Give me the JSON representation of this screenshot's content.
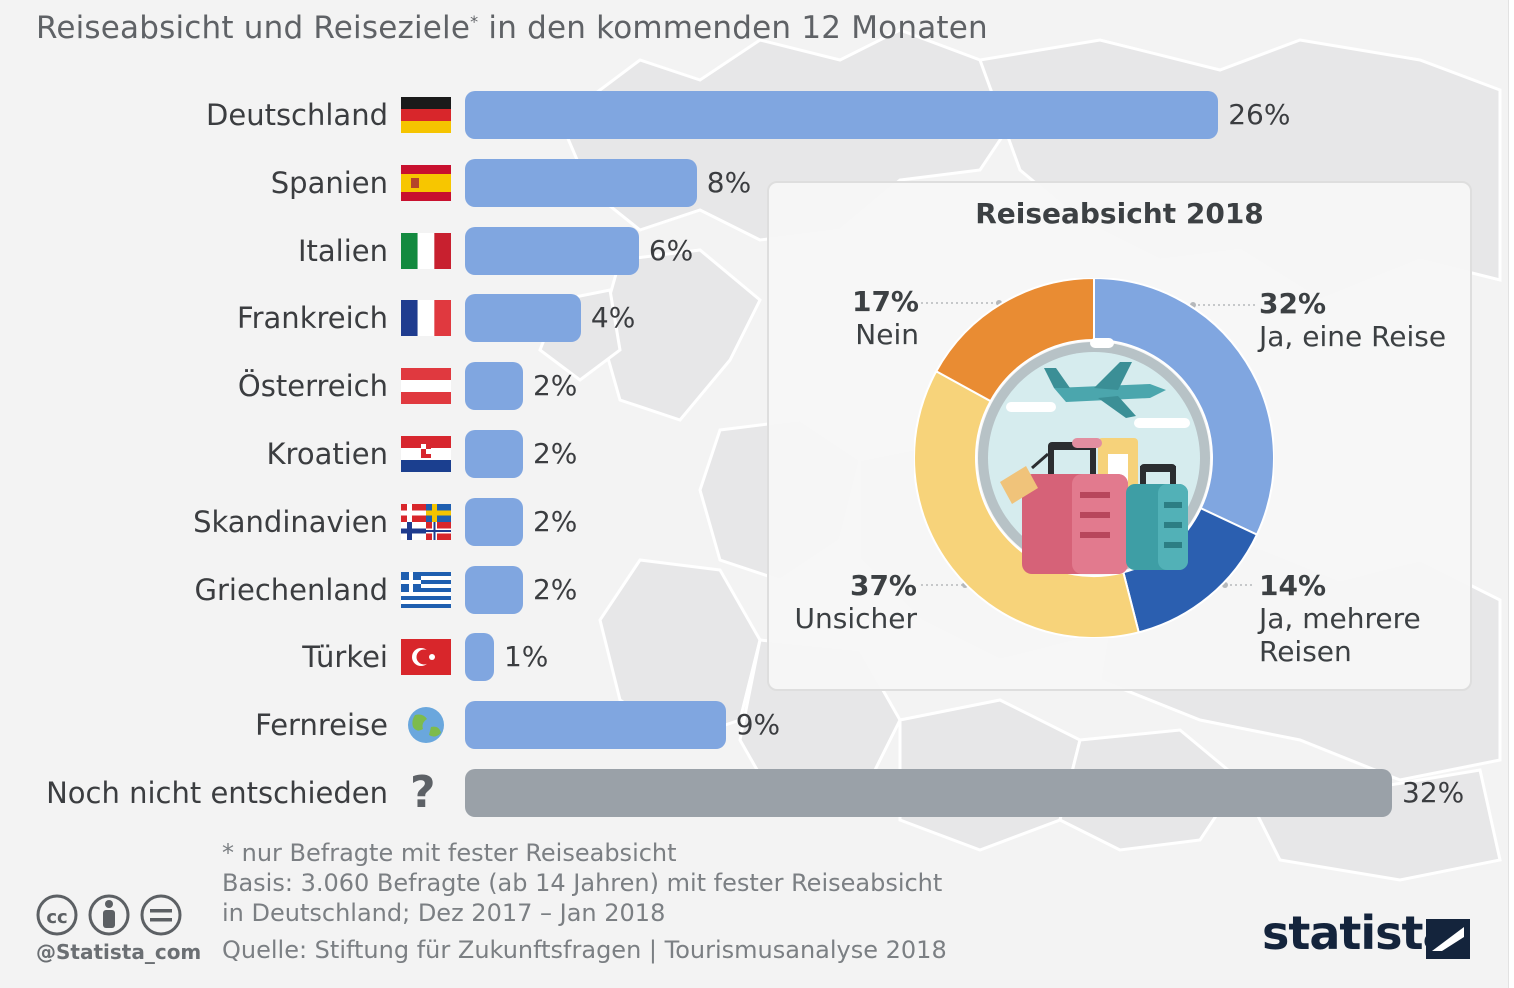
{
  "title": "Reiseabsicht und Reiseziele",
  "title_mark": "*",
  "title_suffix": " in den kommenden 12 Monaten",
  "chart_data": [
    {
      "type": "bar",
      "orientation": "horizontal",
      "categories": [
        "Deutschland",
        "Spanien",
        "Italien",
        "Frankreich",
        "Österreich",
        "Kroatien",
        "Skandinavien",
        "Griechenland",
        "Türkei",
        "Fernreise",
        "Noch nicht entschieden"
      ],
      "values": [
        26,
        8,
        6,
        4,
        2,
        2,
        2,
        2,
        1,
        9,
        32
      ],
      "value_labels": [
        "26%",
        "8%",
        "6%",
        "4%",
        "2%",
        "2%",
        "2%",
        "2%",
        "1%",
        "9%",
        "32%"
      ],
      "icons": [
        "flag-germany",
        "flag-spain",
        "flag-italy",
        "flag-france",
        "flag-austria",
        "flag-croatia",
        "flags-scandinavia",
        "flag-greece",
        "flag-turkey",
        "globe",
        "question-mark"
      ],
      "colors": [
        "#80a6e0",
        "#80a6e0",
        "#80a6e0",
        "#80a6e0",
        "#80a6e0",
        "#80a6e0",
        "#80a6e0",
        "#80a6e0",
        "#80a6e0",
        "#80a6e0",
        "#9aa1a8"
      ],
      "unit": "%",
      "xlim": [
        0,
        32
      ]
    },
    {
      "type": "pie",
      "title": "Reiseabsicht 2018",
      "donut": true,
      "slices": [
        {
          "label": "Ja, eine Reise",
          "value": 32,
          "value_label": "32%",
          "color": "#80a6e0"
        },
        {
          "label": "Ja, mehrere Reisen",
          "value": 14,
          "value_label": "14%",
          "color": "#2b5fb0"
        },
        {
          "label": "Unsicher",
          "value": 37,
          "value_label": "37%",
          "color": "#f7d37a"
        },
        {
          "label": "Nein",
          "value": 17,
          "value_label": "17%",
          "color": "#e98c33"
        }
      ],
      "labels_display": {
        "ja_eine": [
          "Ja, eine Reise"
        ],
        "ja_mehrere": [
          "Ja, mehrere",
          "Reisen"
        ]
      },
      "center_icon": "travel-luggage-airplane-illustration"
    }
  ],
  "footnote": {
    "line1": "* nur Befragte mit fester Reiseabsicht",
    "line2": "Basis: 3.060 Befragte (ab 14 Jahren) mit fester Reiseabsicht",
    "line3": "in Deutschland; Dez 2017 – Jan 2018"
  },
  "source": "Quelle: Stiftung für Zukunftsfragen | Tourismusanalyse 2018",
  "license_icons": [
    "cc-icon",
    "by-icon",
    "nd-icon"
  ],
  "handle": "@Statista_com",
  "brand": "statista",
  "colors": {
    "bar": "#80a6e0",
    "bar_undecided": "#9aa1a8",
    "brand": "#14243c"
  }
}
